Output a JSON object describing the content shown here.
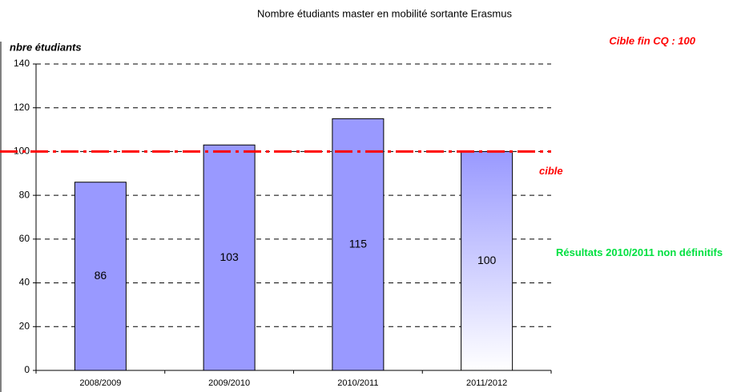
{
  "chart_data": {
    "type": "bar",
    "title": "Nombre étudiants master en mobilité sortante Erasmus",
    "y_label": "nbre étudiants",
    "categories": [
      "2008/2009",
      "2009/2010",
      "2010/2011",
      "2011/2012"
    ],
    "values": [
      86,
      103,
      115,
      100
    ],
    "color": "#9999ff",
    "fills": [
      "solid",
      "solid",
      "solid",
      "gradient"
    ],
    "ylim": [
      0,
      140
    ],
    "yticks": [
      0,
      20,
      40,
      60,
      80,
      100,
      120,
      140
    ],
    "grid": true,
    "target": {
      "value": 100,
      "label": "cible",
      "color": "#ff0000"
    },
    "annotations": [
      "Cible fin CQ : 100",
      "Résultats 2010/2011 non définitifs"
    ]
  }
}
